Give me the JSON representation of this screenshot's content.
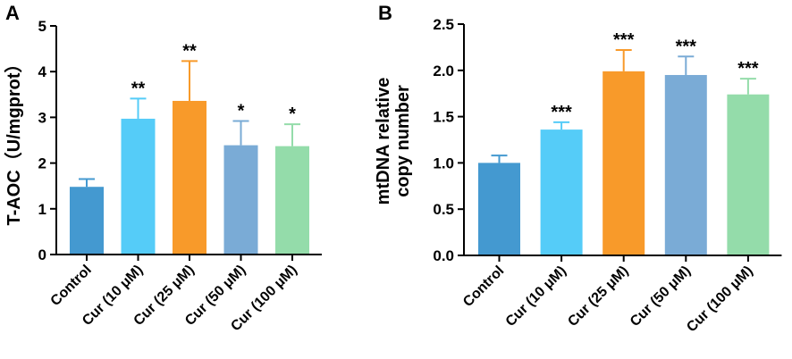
{
  "chart_data": [
    {
      "type": "bar",
      "panel": "A",
      "ylabel": "T-AOC（U/mgprot）",
      "categories": [
        "Control",
        "Cur (10 μM)",
        "Cur (25 μM)",
        "Cur (50 μM)",
        "Cur (100 μM)"
      ],
      "values": [
        1.48,
        2.97,
        3.36,
        2.39,
        2.37
      ],
      "errors": [
        0.17,
        0.44,
        0.87,
        0.53,
        0.48
      ],
      "significance": [
        "",
        "**",
        "**",
        "*",
        "*"
      ],
      "colors": [
        "#4499d0",
        "#55ccf8",
        "#f89a2a",
        "#7aabd6",
        "#94dcaa"
      ],
      "ylim": [
        0,
        5
      ],
      "yticks": [
        "0",
        "1",
        "2",
        "3",
        "4",
        "5"
      ]
    },
    {
      "type": "bar",
      "panel": "B",
      "ylabel": [
        "mtDNA relative",
        "copy number"
      ],
      "categories": [
        "Control",
        "Cur (10 μM)",
        "Cur (25 μM)",
        "Cur (50 μM)",
        "Cur (100 μM)"
      ],
      "values": [
        1.0,
        1.36,
        1.99,
        1.95,
        1.74
      ],
      "errors": [
        0.08,
        0.08,
        0.23,
        0.2,
        0.17
      ],
      "significance": [
        "",
        "***",
        "***",
        "***",
        "***"
      ],
      "colors": [
        "#4499d0",
        "#55ccf8",
        "#f89a2a",
        "#7aabd6",
        "#94dcaa"
      ],
      "ylim": [
        0,
        2.5
      ],
      "yticks": [
        "0.0",
        "0.5",
        "1.0",
        "1.5",
        "2.0",
        "2.5"
      ]
    }
  ]
}
